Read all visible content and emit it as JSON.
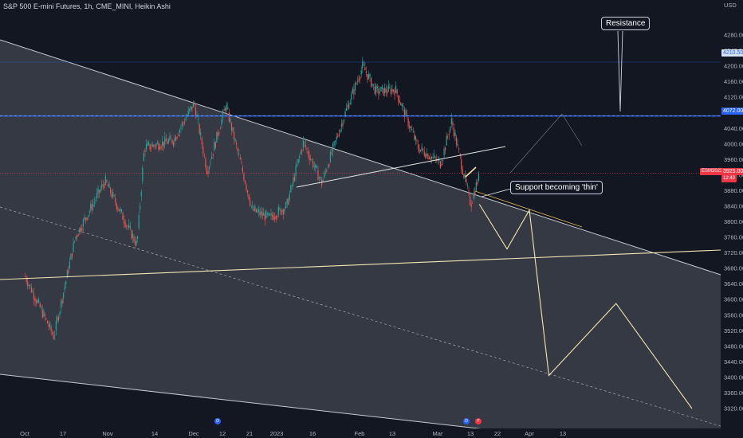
{
  "header": {
    "legend": "S&P 500 E-mini Futures, 1h, CME_MINI, Heikin Ashi"
  },
  "axis": {
    "currency": "USD",
    "x_ticks": [
      "Oct",
      "17",
      "Nov",
      "14",
      "Dec",
      "12",
      "21",
      "2023",
      "16",
      "Feb",
      "13",
      "Mar",
      "13",
      "22",
      "Apr",
      "13"
    ],
    "y_ticks": [
      "4280.00",
      "4240.00",
      "4200.00",
      "4160.00",
      "4120.00",
      "4080.00",
      "4040.00",
      "4000.00",
      "3960.00",
      "3920.00",
      "3880.00",
      "3840.00",
      "3800.00",
      "3760.00",
      "3720.00",
      "3680.00",
      "3640.00",
      "3600.00",
      "3560.00",
      "3520.00",
      "3480.00",
      "3440.00",
      "3400.00",
      "3360.00",
      "3320.00"
    ]
  },
  "price_tags": {
    "upper": "4210.50",
    "resistance": "4072.00",
    "symbol": "ESM2023",
    "last": "3925.00",
    "countdown": "12:49"
  },
  "annotations": {
    "resistance": "Resistance",
    "support": "Support becoming 'thin'"
  },
  "event_icons": [
    "D",
    "D",
    "F"
  ],
  "colors": {
    "background": "#131722",
    "up": "#26a69a",
    "down": "#ef5350",
    "resistance_line": "#2962ff",
    "support_line": "#f3e6b2",
    "channel_fill": "#787b86",
    "last_price": "#f23645"
  },
  "chart_data": {
    "type": "candlestick",
    "title": "S&P 500 E-mini Futures, 1h, CME_MINI, Heikin Ashi",
    "y_unit": "USD",
    "ylim": [
      3315,
      4300
    ],
    "x_range": [
      "2022-09-28",
      "2023-04-30"
    ],
    "grid": false,
    "ohlc_summary": [
      {
        "date": "2022-10-01",
        "close": 3660
      },
      {
        "date": "2022-10-13",
        "close": 3505
      },
      {
        "date": "2022-10-21",
        "close": 3760
      },
      {
        "date": "2022-10-31",
        "close": 3905
      },
      {
        "date": "2022-11-09",
        "close": 3740
      },
      {
        "date": "2022-11-11",
        "close": 3990
      },
      {
        "date": "2022-11-22",
        "close": 4010
      },
      {
        "date": "2022-12-01",
        "close": 4105
      },
      {
        "date": "2022-12-06",
        "close": 3930
      },
      {
        "date": "2022-12-13",
        "close": 4100
      },
      {
        "date": "2022-12-22",
        "close": 3830
      },
      {
        "date": "2022-12-29",
        "close": 3810
      },
      {
        "date": "2023-01-05",
        "close": 3840
      },
      {
        "date": "2023-01-12",
        "close": 4005
      },
      {
        "date": "2023-01-19",
        "close": 3900
      },
      {
        "date": "2023-01-27",
        "close": 4080
      },
      {
        "date": "2023-02-02",
        "close": 4200
      },
      {
        "date": "2023-02-07",
        "close": 4135
      },
      {
        "date": "2023-02-14",
        "close": 4140
      },
      {
        "date": "2023-02-22",
        "close": 3990
      },
      {
        "date": "2023-03-02",
        "close": 3950
      },
      {
        "date": "2023-03-06",
        "close": 4060
      },
      {
        "date": "2023-03-09",
        "close": 3965
      },
      {
        "date": "2023-03-13",
        "close": 3845
      },
      {
        "date": "2023-03-16",
        "close": 3925
      }
    ],
    "projection_path": [
      {
        "date": "2023-03-16",
        "price": 3845
      },
      {
        "date": "2023-03-25",
        "price": 3730
      },
      {
        "date": "2023-04-01",
        "price": 3830
      },
      {
        "date": "2023-04-08",
        "price": 3405
      },
      {
        "date": "2023-04-20",
        "price": 3590
      },
      {
        "date": "2023-04-30",
        "price": 3320
      }
    ],
    "levels": [
      {
        "price": 4072,
        "label": "Resistance"
      },
      {
        "price": 4210.5
      },
      {
        "price": 3925
      }
    ]
  }
}
